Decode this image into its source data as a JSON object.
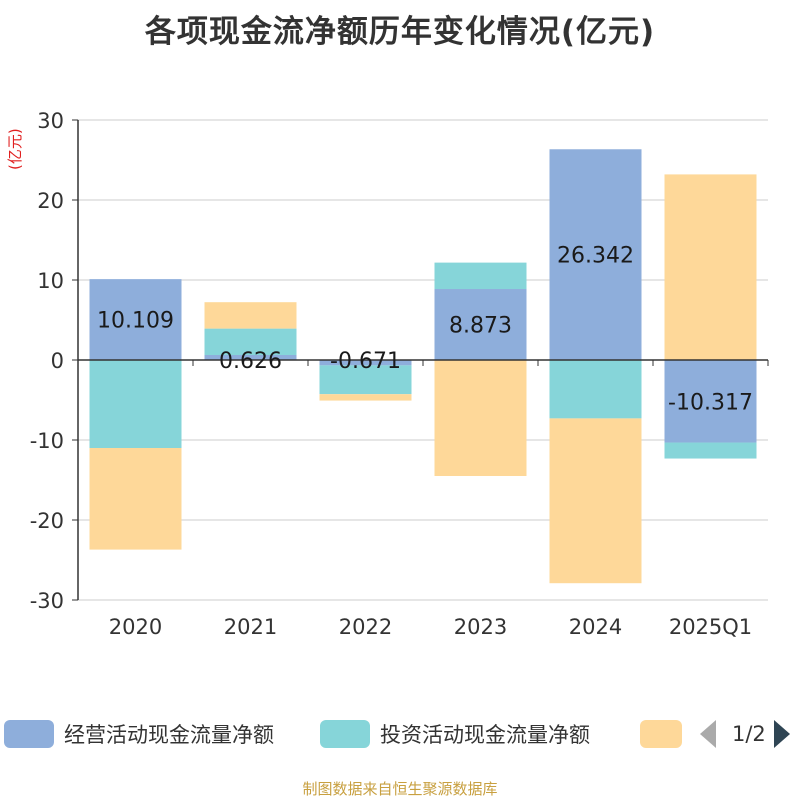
{
  "chart_data": {
    "type": "bar",
    "stacked": true,
    "title": "各项现金流净额历年变化情况(亿元)",
    "ylabel": "(亿元)",
    "ylim": [
      -30,
      30
    ],
    "yticks": [
      30,
      20,
      10,
      0,
      -10,
      -20,
      -30
    ],
    "categories": [
      "2020",
      "2021",
      "2022",
      "2023",
      "2024",
      "2025Q1"
    ],
    "series": [
      {
        "name": "经营活动现金流量净额",
        "color": "#8eaedb",
        "values": [
          10.109,
          0.626,
          -0.671,
          8.873,
          26.342,
          -10.317
        ],
        "labels": [
          "10.109",
          "0.626",
          "-0.671",
          "8.873",
          "26.342",
          "-10.317"
        ]
      },
      {
        "name": "投资活动现金流量净额",
        "color": "#86d5d9",
        "values": [
          -11.0,
          3.3,
          -3.6,
          3.3,
          -7.3,
          -2.0
        ]
      },
      {
        "name": "",
        "color": "#fed899",
        "values": [
          -12.7,
          3.3,
          -0.8,
          -14.5,
          -20.6,
          23.2
        ]
      }
    ],
    "legend": {
      "position": "bottom",
      "page": "1/2"
    },
    "source": "制图数据来自恒生聚源数据库"
  }
}
